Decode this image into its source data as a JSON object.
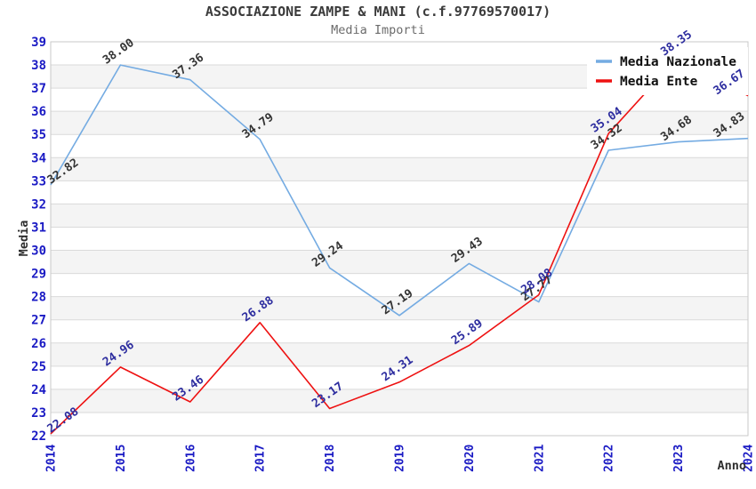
{
  "title": "ASSOCIAZIONE ZAMPE & MANI (c.f.97769570017)",
  "subtitle": "Media Importi",
  "chart_data": {
    "type": "line",
    "categories": [
      "2014",
      "2015",
      "2016",
      "2017",
      "2018",
      "2019",
      "2020",
      "2021",
      "2022",
      "2023",
      "2024"
    ],
    "series": [
      {
        "name": "Media Nazionale",
        "color": "#74ABE2",
        "label_color": "#333333",
        "values": [
          32.82,
          38.0,
          37.36,
          34.79,
          29.24,
          27.19,
          29.43,
          27.77,
          34.32,
          34.68,
          34.83
        ],
        "labels": [
          "32.82",
          "38.00",
          "37.36",
          "34.79",
          "29.24",
          "27.19",
          "29.43",
          "27.77",
          "34.32",
          "34.68",
          "34.83"
        ]
      },
      {
        "name": "Media Ente",
        "color": "#EE1111",
        "label_color": "#2D2D9F",
        "values": [
          22.08,
          24.96,
          23.46,
          26.88,
          23.17,
          24.31,
          25.89,
          28.08,
          35.04,
          38.35,
          36.67
        ],
        "labels": [
          "22.08",
          "24.96",
          "23.46",
          "26.88",
          "23.17",
          "24.31",
          "25.89",
          "28.08",
          "35.04",
          "38.35",
          "36.67"
        ]
      }
    ],
    "xlabel": "Anno",
    "ylabel": "Media",
    "ylim": [
      22,
      39
    ],
    "y_ticks": [
      22,
      23,
      24,
      25,
      26,
      27,
      28,
      29,
      30,
      31,
      32,
      33,
      34,
      35,
      36,
      37,
      38,
      39
    ],
    "grid": true,
    "legend_position": "top-right",
    "value_labels_rotated": true,
    "colors": {
      "band": "#F4F4F4",
      "gridline": "#DADADA",
      "plot_border": "#C9C9C9",
      "axis_tick_text": "#1A1AC4",
      "title_text": "#3B3B3B",
      "subtitle_text": "#6B6B6B",
      "legend_background": "#FFFFFF"
    }
  }
}
